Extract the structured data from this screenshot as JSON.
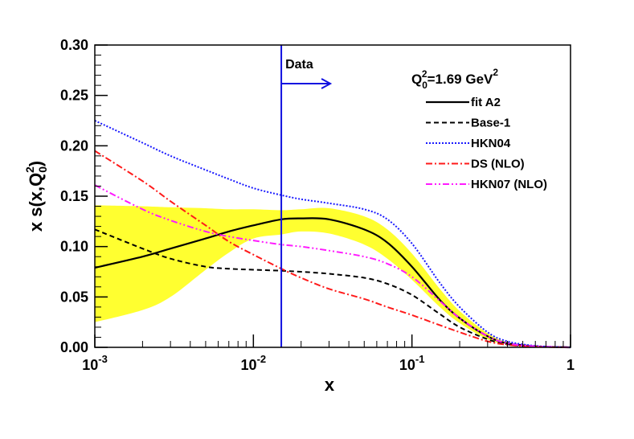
{
  "chart_data": {
    "type": "line",
    "title": "",
    "xlabel": "x",
    "ylabel": "x s(x,Q0^2)",
    "x_scale": "log",
    "xlim": [
      0.001,
      1
    ],
    "ylim": [
      0.0,
      0.3
    ],
    "grid": false,
    "legend_position": "top-right",
    "x_ticks": [
      {
        "value": 0.001,
        "base": "10",
        "exp": "-3"
      },
      {
        "value": 0.01,
        "base": "10",
        "exp": "-2"
      },
      {
        "value": 0.1,
        "base": "10",
        "exp": "-1"
      },
      {
        "value": 1,
        "base": "1",
        "exp": ""
      }
    ],
    "y_ticks": [
      {
        "value": 0.0,
        "label": "0.00"
      },
      {
        "value": 0.05,
        "label": "0.05"
      },
      {
        "value": 0.1,
        "label": "0.10"
      },
      {
        "value": 0.15,
        "label": "0.15"
      },
      {
        "value": 0.2,
        "label": "0.20"
      },
      {
        "value": 0.25,
        "label": "0.25"
      },
      {
        "value": 0.3,
        "label": "0.30"
      }
    ],
    "ylabel_parts": {
      "prefix": "x s(x,Q",
      "sub": "0",
      "sup": "2",
      "suffix": ")"
    },
    "scale_note": {
      "pre": "Q",
      "sub": "0",
      "sup": "2",
      "mid": "=1.69 GeV",
      "sup2": "2"
    },
    "data_marker": {
      "label": "Data",
      "x": 0.015,
      "color": "#1010e0"
    },
    "band": {
      "name": "fit A2 uncertainty",
      "color": "#ffff30",
      "x": [
        0.001,
        0.002,
        0.003,
        0.005,
        0.007,
        0.01,
        0.015,
        0.02,
        0.03,
        0.05,
        0.07,
        0.1,
        0.15,
        0.2,
        0.3,
        0.4,
        0.6,
        1.0
      ],
      "lower": [
        0.025,
        0.037,
        0.05,
        0.077,
        0.094,
        0.108,
        0.112,
        0.115,
        0.113,
        0.102,
        0.088,
        0.067,
        0.04,
        0.024,
        0.008,
        0.003,
        0.0005,
        0.0
      ],
      "upper": [
        0.141,
        0.14,
        0.139,
        0.138,
        0.137,
        0.137,
        0.136,
        0.137,
        0.138,
        0.13,
        0.117,
        0.093,
        0.058,
        0.036,
        0.014,
        0.005,
        0.001,
        0.0
      ]
    },
    "series": [
      {
        "name": "fit A2",
        "color": "#000000",
        "dash": "",
        "width": 2.2,
        "x": [
          0.001,
          0.002,
          0.003,
          0.005,
          0.007,
          0.01,
          0.015,
          0.02,
          0.03,
          0.05,
          0.07,
          0.1,
          0.15,
          0.2,
          0.3,
          0.4,
          0.6,
          1.0
        ],
        "y": [
          0.079,
          0.09,
          0.098,
          0.108,
          0.115,
          0.121,
          0.127,
          0.128,
          0.127,
          0.117,
          0.104,
          0.08,
          0.047,
          0.029,
          0.011,
          0.004,
          0.001,
          0.0
        ]
      },
      {
        "name": "Base-1",
        "color": "#000000",
        "dash": "6,4",
        "width": 2,
        "x": [
          0.001,
          0.002,
          0.003,
          0.005,
          0.007,
          0.01,
          0.015,
          0.02,
          0.03,
          0.05,
          0.07,
          0.1,
          0.15,
          0.2,
          0.3,
          0.4,
          0.6,
          1.0
        ],
        "y": [
          0.117,
          0.098,
          0.088,
          0.08,
          0.078,
          0.077,
          0.076,
          0.075,
          0.073,
          0.069,
          0.063,
          0.052,
          0.033,
          0.02,
          0.008,
          0.003,
          0.0008,
          0.0
        ]
      },
      {
        "name": "HKN04",
        "color": "#1a1aff",
        "dash": "2,2",
        "width": 2,
        "x": [
          0.001,
          0.002,
          0.003,
          0.005,
          0.007,
          0.01,
          0.015,
          0.02,
          0.03,
          0.05,
          0.07,
          0.1,
          0.15,
          0.2,
          0.3,
          0.4,
          0.6,
          1.0
        ],
        "y": [
          0.225,
          0.203,
          0.19,
          0.176,
          0.167,
          0.158,
          0.151,
          0.147,
          0.143,
          0.137,
          0.127,
          0.103,
          0.064,
          0.04,
          0.015,
          0.006,
          0.0015,
          0.0
        ]
      },
      {
        "name": "DS (NLO)",
        "color": "#ff1a1a",
        "dash": "8,3,2,3",
        "width": 2,
        "x": [
          0.001,
          0.002,
          0.003,
          0.005,
          0.007,
          0.01,
          0.015,
          0.02,
          0.03,
          0.05,
          0.07,
          0.1,
          0.15,
          0.2,
          0.3,
          0.4,
          0.6,
          1.0
        ],
        "y": [
          0.195,
          0.165,
          0.145,
          0.121,
          0.105,
          0.092,
          0.078,
          0.069,
          0.058,
          0.048,
          0.04,
          0.032,
          0.022,
          0.015,
          0.006,
          0.0025,
          0.0006,
          0.0
        ]
      },
      {
        "name": "HKN07 (NLO)",
        "color": "#ff1aff",
        "dash": "8,3,2,3,2,3",
        "width": 2,
        "x": [
          0.001,
          0.002,
          0.003,
          0.005,
          0.007,
          0.01,
          0.015,
          0.02,
          0.03,
          0.05,
          0.07,
          0.1,
          0.15,
          0.2,
          0.3,
          0.4,
          0.6,
          1.0
        ],
        "y": [
          0.161,
          0.137,
          0.126,
          0.115,
          0.11,
          0.106,
          0.102,
          0.1,
          0.096,
          0.09,
          0.083,
          0.07,
          0.046,
          0.029,
          0.011,
          0.004,
          0.001,
          0.0
        ]
      }
    ]
  }
}
